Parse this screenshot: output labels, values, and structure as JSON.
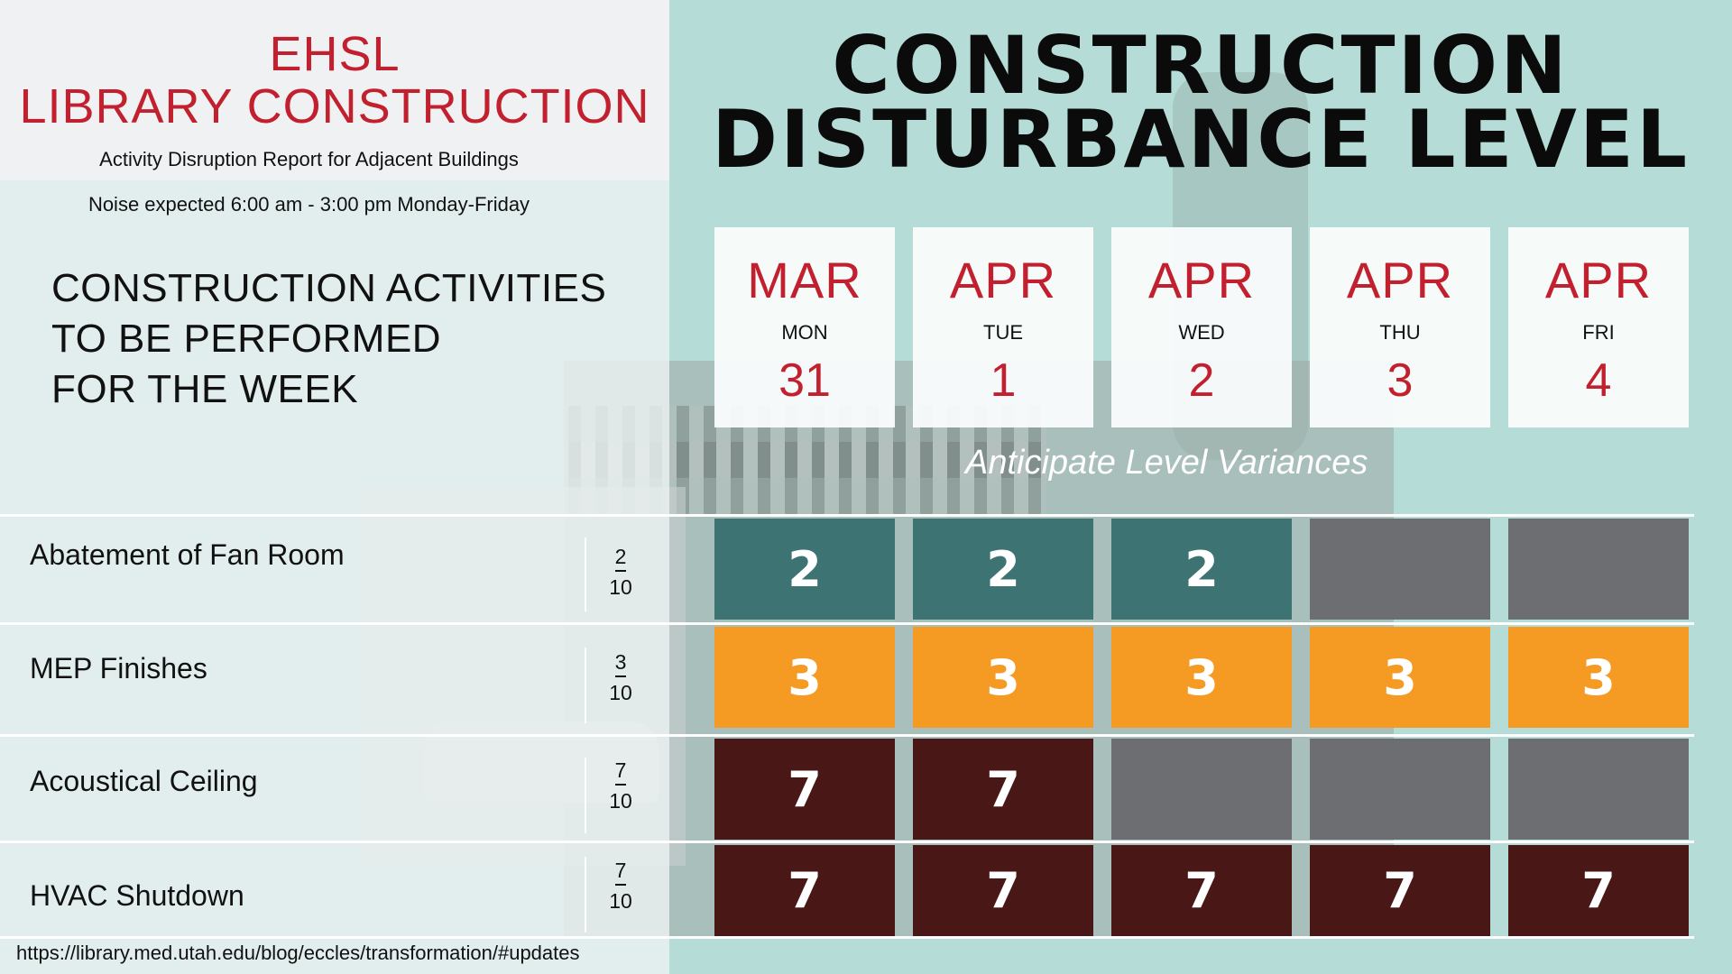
{
  "header": {
    "title_line1": "EHSL",
    "title_line2": "LIBRARY CONSTRUCTION",
    "subtitle": "Activity Disruption Report for Adjacent Buildings",
    "noise_note": "Noise expected 6:00 am - 3:00 pm Monday-Friday"
  },
  "activities_heading": [
    "CONSTRUCTION ACTIVITIES",
    "TO BE PERFORMED",
    "FOR THE WEEK"
  ],
  "main_title": [
    "CONSTRUCTION",
    "DISTURBANCE LEVEL"
  ],
  "days": [
    {
      "month": "MAR",
      "dow": "MON",
      "date": "31"
    },
    {
      "month": "APR",
      "dow": "TUE",
      "date": "1"
    },
    {
      "month": "APR",
      "dow": "WED",
      "date": "2"
    },
    {
      "month": "APR",
      "dow": "THU",
      "date": "3"
    },
    {
      "month": "APR",
      "dow": "FRI",
      "date": "4"
    }
  ],
  "variance_note": "Anticipate Level Variances",
  "activities": [
    {
      "label": "Abatement of Fan Room",
      "level": "2",
      "scale": "10",
      "cells": [
        "2",
        "2",
        "2",
        "",
        ""
      ]
    },
    {
      "label": "MEP Finishes",
      "level": "3",
      "scale": "10",
      "cells": [
        "3",
        "3",
        "3",
        "3",
        "3"
      ]
    },
    {
      "label": "Acoustical Ceiling",
      "level": "7",
      "scale": "10",
      "cells": [
        "7",
        "7",
        "",
        "",
        ""
      ]
    },
    {
      "label": "HVAC Shutdown",
      "level": "7",
      "scale": "10",
      "cells": [
        "7",
        "7",
        "7",
        "7",
        "7"
      ]
    }
  ],
  "colors": {
    "level_2": "#3d7373",
    "level_3": "#f59a23",
    "level_7": "#4a1717",
    "inactive": "#6d6e71",
    "accent_red": "#c2202f"
  },
  "footer_url": "https://library.med.utah.edu/blog/eccles/transformation/#updates"
}
